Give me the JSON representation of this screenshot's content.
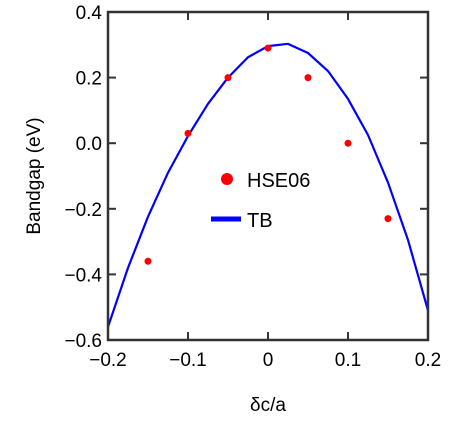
{
  "chart_data": {
    "type": "scatter",
    "xlabel": "δc/a",
    "ylabel": "Bandgap (eV)",
    "xlim": [
      -0.2,
      0.2
    ],
    "ylim": [
      -0.6,
      0.4
    ],
    "xticks": [
      -0.2,
      -0.1,
      0.0,
      0.1,
      0.2
    ],
    "xtick_labels": [
      "−0.2",
      "−0.1",
      "0",
      "0.1",
      "0.2"
    ],
    "yticks": [
      -0.6,
      -0.4,
      -0.2,
      0.0,
      0.2,
      0.4
    ],
    "ytick_labels": [
      "−0.6",
      "−0.4",
      "−0.2",
      "0.0",
      "0.2",
      "0.4"
    ],
    "grid": false,
    "legend_position": "center",
    "series": [
      {
        "name": "HSE06",
        "type": "scatter",
        "color": "#ff0000",
        "x": [
          -0.15,
          -0.1,
          -0.05,
          0.0,
          0.05,
          0.1,
          0.15
        ],
        "y": [
          -0.36,
          0.03,
          0.2,
          0.29,
          0.2,
          0.0,
          -0.23
        ]
      },
      {
        "name": "TB",
        "type": "line",
        "color": "#0000ff",
        "x": [
          -0.2,
          -0.175,
          -0.15,
          -0.125,
          -0.1,
          -0.075,
          -0.05,
          -0.025,
          0.0,
          0.025,
          0.05,
          0.075,
          0.1,
          0.125,
          0.15,
          0.175,
          0.2
        ],
        "y": [
          -0.56,
          -0.38,
          -0.224,
          -0.09,
          0.022,
          0.12,
          0.2,
          0.262,
          0.296,
          0.303,
          0.275,
          0.22,
          0.135,
          0.025,
          -0.12,
          -0.295,
          -0.51
        ]
      }
    ]
  }
}
